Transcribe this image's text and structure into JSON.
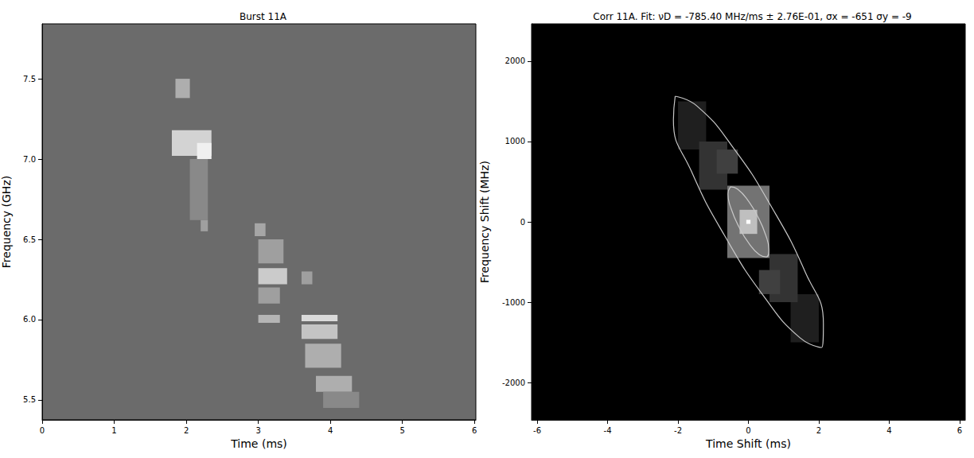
{
  "chart_data": [
    {
      "type": "heatmap",
      "title": "Burst 11A",
      "x_label": "Time (ms)",
      "y_label": "Frequency (GHz)",
      "xlim": [
        0,
        6.02
      ],
      "ylim": [
        5.376,
        7.842
      ],
      "xticks": [
        0,
        1,
        2,
        3,
        4,
        5,
        6
      ],
      "yticks": [
        5.5,
        {
          "value": 6,
          "label": "6.0"
        },
        6.5,
        {
          "value": 7,
          "label": "7.0"
        },
        7.5
      ],
      "grid": false,
      "color": "#6b6b6b",
      "zlim": [
        0,
        1
      ],
      "cells": [
        {
          "x": [
            1.85,
            2.05
          ],
          "y": [
            7.38,
            7.5
          ],
          "value": 0.45
        },
        {
          "x": [
            1.8,
            2.35
          ],
          "y": [
            7.02,
            7.18
          ],
          "value": 0.7
        },
        {
          "x": [
            2.15,
            2.35
          ],
          "y": [
            7.0,
            7.1
          ],
          "value": 0.9
        },
        {
          "x": [
            2.05,
            2.3
          ],
          "y": [
            6.62,
            7.0
          ],
          "value": 0.2
        },
        {
          "x": [
            2.2,
            2.3
          ],
          "y": [
            6.55,
            6.62
          ],
          "value": 0.35
        },
        {
          "x": [
            2.95,
            3.1
          ],
          "y": [
            6.52,
            6.6
          ],
          "value": 0.4
        },
        {
          "x": [
            3.0,
            3.35
          ],
          "y": [
            6.35,
            6.5
          ],
          "value": 0.35
        },
        {
          "x": [
            3.0,
            3.4
          ],
          "y": [
            6.22,
            6.32
          ],
          "value": 0.65
        },
        {
          "x": [
            3.0,
            3.3
          ],
          "y": [
            6.1,
            6.2
          ],
          "value": 0.35
        },
        {
          "x": [
            3.6,
            3.75
          ],
          "y": [
            6.22,
            6.3
          ],
          "value": 0.35
        },
        {
          "x": [
            3.0,
            3.3
          ],
          "y": [
            5.98,
            6.03
          ],
          "value": 0.5
        },
        {
          "x": [
            3.6,
            4.1
          ],
          "y": [
            5.99,
            6.03
          ],
          "value": 0.75
        },
        {
          "x": [
            3.6,
            4.1
          ],
          "y": [
            5.88,
            5.97
          ],
          "value": 0.6
        },
        {
          "x": [
            3.65,
            4.15
          ],
          "y": [
            5.7,
            5.85
          ],
          "value": 0.45
        },
        {
          "x": [
            3.8,
            4.3
          ],
          "y": [
            5.55,
            5.65
          ],
          "value": 0.45
        },
        {
          "x": [
            3.9,
            4.4
          ],
          "y": [
            5.45,
            5.55
          ],
          "value": 0.2
        }
      ]
    },
    {
      "type": "heatmap",
      "title": "Corr 11A. Fit: νD = -785.40 MHz/ms ± 2.76E-01, σx = -651 σy = -9",
      "x_label": "Time Shift (ms)",
      "y_label": "Frequency Shift (MHz)",
      "xlim": [
        -6.16,
        6.16
      ],
      "ylim": [
        -2465,
        2465
      ],
      "xticks": [
        -6,
        -4,
        -2,
        0,
        2,
        4,
        6
      ],
      "yticks": [
        -2000,
        -1000,
        0,
        1000,
        2000
      ],
      "grid": false,
      "color": "#000000",
      "zlim": [
        0,
        1
      ],
      "cells": [
        {
          "x": [
            -2.0,
            -1.2
          ],
          "y": [
            900,
            1500
          ],
          "value": 0.12
        },
        {
          "x": [
            1.2,
            2.0
          ],
          "y": [
            -1500,
            -900
          ],
          "value": 0.12
        },
        {
          "x": [
            -1.4,
            -0.6
          ],
          "y": [
            400,
            1000
          ],
          "value": 0.2
        },
        {
          "x": [
            0.6,
            1.4
          ],
          "y": [
            -1000,
            -400
          ],
          "value": 0.2
        },
        {
          "x": [
            -0.9,
            -0.3
          ],
          "y": [
            600,
            900
          ],
          "value": 0.25
        },
        {
          "x": [
            0.3,
            0.9
          ],
          "y": [
            -900,
            -600
          ],
          "value": 0.25
        },
        {
          "x": [
            -0.6,
            0.6
          ],
          "y": [
            -450,
            450
          ],
          "value": 0.45
        },
        {
          "x": [
            -0.25,
            0.25
          ],
          "y": [
            -150,
            150
          ],
          "value": 0.75
        },
        {
          "x": [
            -0.06,
            0.06
          ],
          "y": [
            -25,
            25
          ],
          "value": 1.0
        }
      ],
      "series": [
        {
          "type": "line",
          "color": "#c8c8c8",
          "x": [
            -2.08,
            -1.46,
            -0.45,
            0.67,
            1.62,
            2.13,
            2.08,
            1.46,
            0.45,
            -0.67,
            -1.62,
            -2.13,
            -2.08
          ],
          "y": [
            1564,
            1442,
            935,
            176,
            -630,
            -1266,
            -1564,
            -1442,
            -935,
            -176,
            630,
            1266,
            1564
          ]
        },
        {
          "type": "line",
          "color": "#c8c8c8",
          "x": [
            -0.51,
            -0.31,
            -0.02,
            0.27,
            0.49,
            0.58,
            0.51,
            0.31,
            0.02,
            -0.27,
            -0.49,
            -0.58,
            -0.51
          ],
          "y": [
            436,
            409,
            272,
            62,
            -163,
            -347,
            -436,
            -409,
            -272,
            -62,
            163,
            347,
            436
          ]
        }
      ]
    }
  ]
}
